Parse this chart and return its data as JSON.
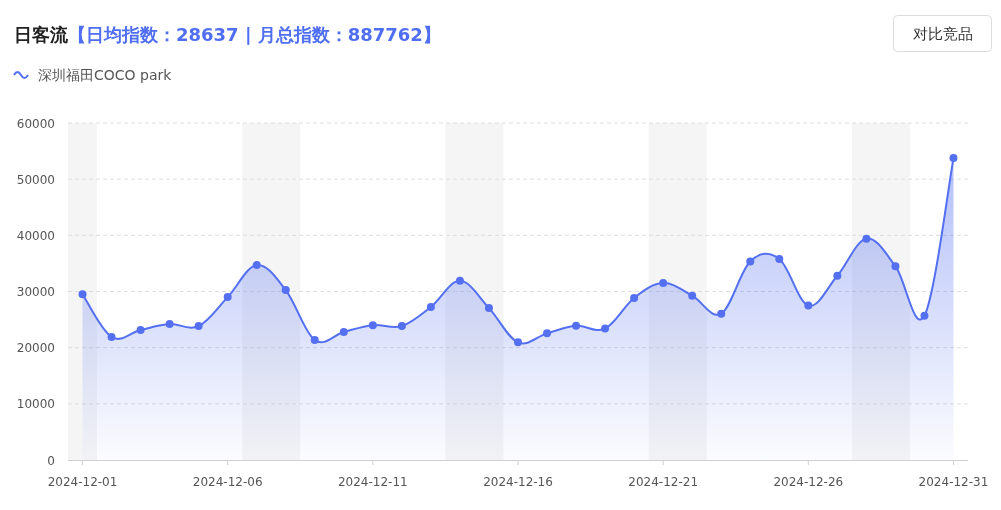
{
  "chart_data": {
    "type": "area",
    "title": "日客流",
    "subtitle": "【日均指数：28637 | 月总指数：887762】",
    "annotations": [
      "对比竞品"
    ],
    "x": [
      "2024-12-01",
      "2024-12-02",
      "2024-12-03",
      "2024-12-04",
      "2024-12-05",
      "2024-12-06",
      "2024-12-07",
      "2024-12-08",
      "2024-12-09",
      "2024-12-10",
      "2024-12-11",
      "2024-12-12",
      "2024-12-13",
      "2024-12-14",
      "2024-12-15",
      "2024-12-16",
      "2024-12-17",
      "2024-12-18",
      "2024-12-19",
      "2024-12-20",
      "2024-12-21",
      "2024-12-22",
      "2024-12-23",
      "2024-12-24",
      "2024-12-25",
      "2024-12-26",
      "2024-12-27",
      "2024-12-28",
      "2024-12-29",
      "2024-12-30",
      "2024-12-31"
    ],
    "series": [
      {
        "name": "深圳福田COCO park",
        "color": "#5470f0",
        "values": [
          29500,
          21900,
          23150,
          24200,
          23850,
          29000,
          34700,
          30250,
          21350,
          22800,
          24000,
          23850,
          27250,
          31900,
          27050,
          20950,
          22550,
          23900,
          23400,
          28850,
          31500,
          29250,
          26050,
          35350,
          35800,
          27500,
          32800,
          39400,
          34500,
          25700,
          53750
        ]
      }
    ],
    "xlim": [
      "2024-11-30T12:00",
      "2024-12-31T12:00"
    ],
    "xticks": [
      "2024-12-01",
      "2024-12-06",
      "2024-12-11",
      "2024-12-16",
      "2024-12-21",
      "2024-12-26",
      "2024-12-31"
    ],
    "ylim": [
      0,
      60000
    ],
    "yticks": [
      0,
      10000,
      20000,
      30000,
      40000,
      50000,
      60000
    ],
    "bands": [
      {
        "axis": "x",
        "from": "2024-11-30T12:00",
        "to": "2024-12-01T12:00",
        "color": "#f5f5f5"
      },
      {
        "axis": "x",
        "from": "2024-12-06T12:00",
        "to": "2024-12-08T12:00",
        "color": "#f5f5f5"
      },
      {
        "axis": "x",
        "from": "2024-12-13T12:00",
        "to": "2024-12-15T12:00",
        "color": "#f5f5f5"
      },
      {
        "axis": "x",
        "from": "2024-12-20T12:00",
        "to": "2024-12-22T12:00",
        "color": "#f5f5f5"
      },
      {
        "axis": "x",
        "from": "2024-12-27T12:00",
        "to": "2024-12-29T12:00",
        "color": "#f5f5f5"
      }
    ],
    "grid": "y",
    "legend": "top left",
    "marker": "circle",
    "line_style": "solid"
  }
}
